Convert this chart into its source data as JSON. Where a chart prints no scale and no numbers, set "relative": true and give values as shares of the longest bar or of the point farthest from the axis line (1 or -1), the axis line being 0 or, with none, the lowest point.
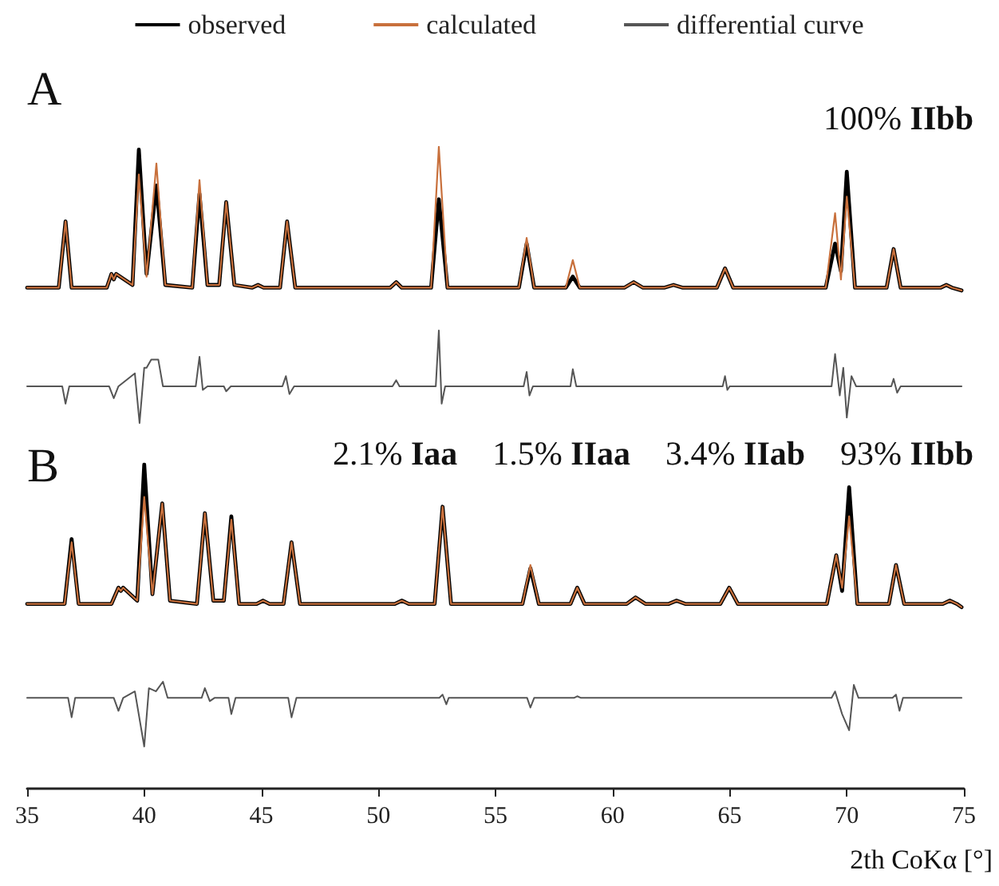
{
  "chart_data": [
    {
      "type": "line",
      "title": "A",
      "relative": true,
      "legend": "top",
      "marker": "none",
      "line_style": "solid",
      "tick_labels": false,
      "xlim": [
        35,
        75
      ],
      "xticks": [
        35,
        40,
        45,
        50,
        55,
        60,
        65,
        70,
        75
      ],
      "annotations": [
        "100% IIbb"
      ],
      "series": [
        {
          "name": "observed",
          "color": "#000000",
          "x": [
            35.0,
            36.35,
            36.64,
            36.9,
            38.4,
            38.6,
            38.7,
            38.8,
            39.5,
            39.77,
            40.1,
            40.52,
            40.9,
            42.05,
            42.36,
            42.7,
            43.2,
            43.5,
            43.85,
            44.6,
            44.86,
            45.1,
            45.8,
            46.1,
            46.45,
            50.5,
            50.76,
            51.0,
            52.25,
            52.58,
            52.95,
            56.0,
            56.33,
            56.65,
            58.0,
            58.3,
            58.6,
            60.5,
            60.9,
            61.3,
            62.2,
            62.6,
            63.0,
            64.45,
            64.8,
            65.15,
            69.1,
            69.5,
            69.75,
            70.0,
            70.35,
            71.7,
            72.0,
            72.3,
            74.0,
            74.25,
            74.5,
            74.9
          ],
          "values": [
            0.49,
            0.49,
            0.73,
            0.49,
            0.49,
            0.54,
            0.52,
            0.54,
            0.5,
            0.99,
            0.54,
            0.86,
            0.5,
            0.49,
            0.83,
            0.5,
            0.5,
            0.8,
            0.5,
            0.49,
            0.5,
            0.49,
            0.49,
            0.73,
            0.49,
            0.49,
            0.51,
            0.49,
            0.49,
            0.81,
            0.49,
            0.49,
            0.65,
            0.49,
            0.49,
            0.53,
            0.49,
            0.49,
            0.51,
            0.49,
            0.49,
            0.5,
            0.49,
            0.49,
            0.56,
            0.49,
            0.49,
            0.65,
            0.55,
            0.91,
            0.49,
            0.49,
            0.63,
            0.49,
            0.49,
            0.5,
            0.49,
            0.48
          ]
        },
        {
          "name": "calculated",
          "color": "#c8703c",
          "x": [
            35.0,
            36.35,
            36.64,
            36.9,
            38.4,
            38.6,
            38.7,
            38.8,
            39.5,
            39.77,
            40.1,
            40.52,
            40.9,
            42.05,
            42.36,
            42.7,
            43.2,
            43.5,
            43.85,
            44.6,
            44.86,
            45.1,
            45.8,
            46.1,
            46.45,
            50.5,
            50.76,
            51.0,
            52.25,
            52.58,
            52.95,
            56.0,
            56.33,
            56.65,
            58.0,
            58.3,
            58.6,
            60.5,
            60.9,
            61.3,
            62.2,
            62.6,
            63.0,
            64.45,
            64.8,
            65.15,
            69.1,
            69.5,
            69.75,
            70.0,
            70.35,
            71.7,
            72.0,
            72.3,
            74.0,
            74.25,
            74.5,
            74.9
          ],
          "values": [
            0.49,
            0.49,
            0.73,
            0.49,
            0.49,
            0.54,
            0.52,
            0.54,
            0.5,
            0.9,
            0.53,
            0.94,
            0.5,
            0.49,
            0.88,
            0.5,
            0.5,
            0.8,
            0.5,
            0.49,
            0.5,
            0.49,
            0.49,
            0.73,
            0.49,
            0.49,
            0.51,
            0.49,
            0.49,
            1.0,
            0.49,
            0.49,
            0.67,
            0.49,
            0.49,
            0.59,
            0.49,
            0.49,
            0.51,
            0.49,
            0.49,
            0.5,
            0.49,
            0.49,
            0.56,
            0.49,
            0.49,
            0.76,
            0.52,
            0.82,
            0.49,
            0.49,
            0.63,
            0.49,
            0.49,
            0.5,
            0.49,
            0.48
          ]
        },
        {
          "name": "differential curve",
          "color": "#555555",
          "x": [
            35.0,
            36.5,
            36.64,
            36.8,
            38.5,
            38.7,
            38.9,
            39.6,
            39.8,
            40.0,
            40.1,
            40.3,
            40.6,
            40.8,
            42.2,
            42.36,
            42.5,
            42.7,
            43.4,
            43.5,
            43.7,
            45.9,
            46.05,
            46.2,
            46.4,
            50.6,
            50.76,
            50.9,
            52.45,
            52.58,
            52.7,
            52.85,
            56.2,
            56.33,
            56.45,
            56.6,
            58.2,
            58.3,
            58.45,
            64.7,
            64.8,
            64.9,
            65.0,
            69.35,
            69.5,
            69.7,
            69.85,
            70.0,
            70.2,
            70.4,
            71.9,
            72.0,
            72.15,
            72.3,
            74.9
          ],
          "values": [
            0.133,
            0.133,
            0.07,
            0.133,
            0.133,
            0.09,
            0.133,
            0.18,
            0.0,
            0.2,
            0.2,
            0.23,
            0.23,
            0.133,
            0.133,
            0.24,
            0.12,
            0.133,
            0.133,
            0.115,
            0.133,
            0.133,
            0.17,
            0.105,
            0.133,
            0.133,
            0.155,
            0.133,
            0.133,
            0.335,
            0.07,
            0.133,
            0.133,
            0.185,
            0.1,
            0.133,
            0.133,
            0.195,
            0.133,
            0.133,
            0.17,
            0.12,
            0.133,
            0.133,
            0.25,
            0.1,
            0.2,
            0.02,
            0.17,
            0.133,
            0.133,
            0.16,
            0.11,
            0.133,
            0.133
          ]
        }
      ]
    },
    {
      "type": "line",
      "title": "B",
      "relative": true,
      "marker": "none",
      "line_style": "solid",
      "tick_labels": "x",
      "xlim": [
        35,
        75
      ],
      "xticks": [
        35,
        40,
        45,
        50,
        55,
        60,
        65,
        70,
        75
      ],
      "xlabel": "2th CoKα [°]",
      "annotations": [
        "2.1% Iaa",
        "1.5% IIaa",
        "3.4% IIab",
        "93% IIbb"
      ],
      "series": [
        {
          "color": "#000000",
          "x": [
            35.0,
            36.6,
            36.9,
            37.2,
            38.6,
            38.9,
            39.0,
            39.1,
            39.7,
            40.0,
            40.35,
            40.77,
            41.1,
            42.25,
            42.59,
            42.95,
            43.4,
            43.72,
            44.05,
            44.8,
            45.08,
            45.35,
            45.95,
            46.29,
            46.65,
            50.7,
            51.0,
            51.3,
            52.4,
            52.74,
            53.1,
            56.15,
            56.49,
            56.85,
            58.2,
            58.49,
            58.8,
            60.6,
            60.98,
            61.4,
            62.4,
            62.73,
            63.1,
            64.6,
            64.98,
            65.35,
            69.15,
            69.55,
            69.8,
            70.1,
            70.45,
            71.8,
            72.1,
            72.45,
            74.1,
            74.4,
            74.7,
            74.9
          ],
          "values": [
            0.57,
            0.57,
            0.77,
            0.57,
            0.57,
            0.62,
            0.61,
            0.62,
            0.58,
            1.0,
            0.6,
            0.88,
            0.58,
            0.57,
            0.85,
            0.58,
            0.58,
            0.84,
            0.57,
            0.57,
            0.58,
            0.57,
            0.57,
            0.76,
            0.57,
            0.57,
            0.58,
            0.57,
            0.57,
            0.87,
            0.57,
            0.57,
            0.68,
            0.57,
            0.57,
            0.62,
            0.57,
            0.57,
            0.59,
            0.57,
            0.57,
            0.58,
            0.57,
            0.57,
            0.62,
            0.57,
            0.57,
            0.72,
            0.61,
            0.93,
            0.57,
            0.57,
            0.69,
            0.57,
            0.57,
            0.58,
            0.57,
            0.56
          ]
        },
        {
          "color": "#c8703c",
          "x": [
            35.0,
            36.6,
            36.9,
            37.2,
            38.6,
            38.9,
            39.0,
            39.1,
            39.7,
            40.0,
            40.35,
            40.77,
            41.1,
            42.25,
            42.59,
            42.95,
            43.4,
            43.72,
            44.05,
            44.8,
            45.08,
            45.35,
            45.95,
            46.29,
            46.65,
            50.7,
            51.0,
            51.3,
            52.4,
            52.74,
            53.1,
            56.15,
            56.49,
            56.85,
            58.2,
            58.49,
            58.8,
            60.6,
            60.98,
            61.4,
            62.4,
            62.73,
            63.1,
            64.6,
            64.98,
            65.35,
            69.15,
            69.55,
            69.8,
            70.1,
            70.45,
            71.8,
            72.1,
            72.45,
            74.1,
            74.4,
            74.7,
            74.9
          ],
          "values": [
            0.57,
            0.57,
            0.76,
            0.57,
            0.57,
            0.62,
            0.61,
            0.62,
            0.58,
            0.9,
            0.6,
            0.88,
            0.58,
            0.57,
            0.85,
            0.58,
            0.58,
            0.83,
            0.57,
            0.57,
            0.58,
            0.57,
            0.57,
            0.76,
            0.57,
            0.57,
            0.58,
            0.57,
            0.57,
            0.87,
            0.57,
            0.57,
            0.69,
            0.57,
            0.57,
            0.62,
            0.57,
            0.57,
            0.59,
            0.57,
            0.57,
            0.58,
            0.57,
            0.57,
            0.62,
            0.57,
            0.57,
            0.72,
            0.62,
            0.84,
            0.57,
            0.57,
            0.69,
            0.57,
            0.57,
            0.58,
            0.57,
            0.56
          ]
        },
        {
          "color": "#555555",
          "x": [
            35.0,
            36.75,
            36.9,
            37.05,
            38.7,
            38.9,
            39.1,
            39.6,
            40.0,
            40.2,
            40.5,
            40.8,
            41.0,
            42.45,
            42.59,
            42.8,
            43.0,
            43.6,
            43.72,
            43.9,
            46.15,
            46.29,
            46.5,
            52.6,
            52.74,
            52.9,
            53.0,
            56.35,
            56.49,
            56.65,
            58.35,
            58.49,
            58.65,
            69.35,
            69.5,
            69.8,
            70.1,
            70.3,
            70.5,
            71.95,
            72.1,
            72.25,
            72.4,
            74.9
          ],
          "values": [
            0.28,
            0.28,
            0.22,
            0.28,
            0.28,
            0.24,
            0.28,
            0.3,
            0.13,
            0.31,
            0.3,
            0.33,
            0.28,
            0.28,
            0.31,
            0.27,
            0.28,
            0.28,
            0.23,
            0.28,
            0.28,
            0.22,
            0.28,
            0.28,
            0.29,
            0.26,
            0.28,
            0.28,
            0.25,
            0.28,
            0.28,
            0.285,
            0.28,
            0.28,
            0.3,
            0.23,
            0.18,
            0.32,
            0.28,
            0.28,
            0.29,
            0.24,
            0.28,
            0.28
          ]
        }
      ]
    }
  ]
}
